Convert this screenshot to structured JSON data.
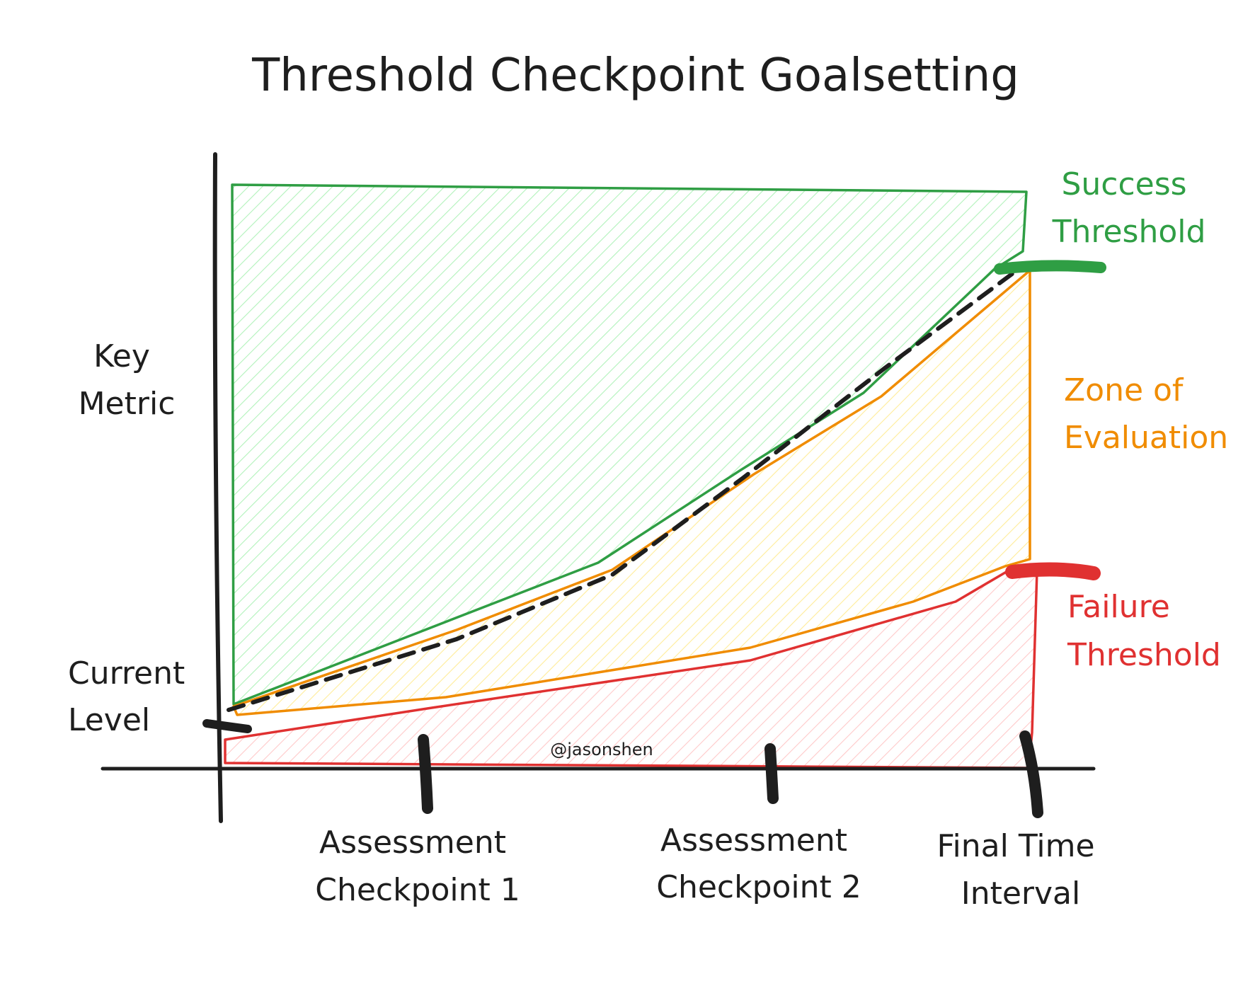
{
  "title": "Threshold Checkpoint Goalsetting",
  "y_axis_label": [
    "Key",
    "Metric"
  ],
  "start_label": [
    "Current",
    "Level"
  ],
  "x_labels": {
    "checkpoint1": [
      "Assessment",
      "Checkpoint 1"
    ],
    "checkpoint2": [
      "Assessment",
      "Checkpoint 2"
    ],
    "final": [
      "Final Time",
      "Interval"
    ]
  },
  "zones": {
    "success": [
      "Success",
      "Threshold"
    ],
    "evaluation": [
      "Zone of",
      "Evaluation"
    ],
    "failure": [
      "Failure",
      "Threshold"
    ]
  },
  "credit": "@jasonshen",
  "colors": {
    "success": "#2f9e44",
    "success_fill": "#b2f2bb",
    "evaluation": "#f08c00",
    "evaluation_fill": "#ffec99",
    "failure": "#e03131",
    "failure_fill": "#ffc9c9",
    "ink": "#1e1e1e"
  }
}
